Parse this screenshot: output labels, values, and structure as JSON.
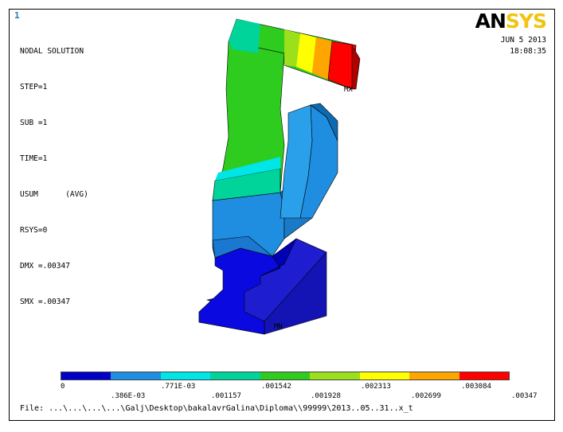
{
  "window_number": "1",
  "info_lines": [
    "NODAL SOLUTION",
    "STEP=1",
    "SUB =1",
    "TIME=1",
    "USUM      (AVG)",
    "RSYS=0",
    "DMX =.00347",
    "SMX =.00347"
  ],
  "logo": {
    "part1": "AN",
    "part2": "SYS"
  },
  "date": "JUN  5 2013",
  "time": "18:08:35",
  "max_label": "MX",
  "min_label": "MN",
  "legend": {
    "colors": [
      "#0000c8",
      "#1f8ee0",
      "#00e5e5",
      "#00d49a",
      "#2ecc1f",
      "#9be01a",
      "#ffff00",
      "#ffa500",
      "#ff0000"
    ],
    "upper_labels": [
      "0",
      ".771E-03",
      ".001542",
      ".002313",
      ".003084"
    ],
    "lower_labels": [
      ".386E-03",
      ".001157",
      ".001928",
      ".002699",
      ".00347"
    ]
  },
  "file_line": "File: ...\\...\\...\\...\\Galj\\Desktop\\bakalavrGalina\\Diploma\\\\99999\\2013..05..31..x_t"
}
